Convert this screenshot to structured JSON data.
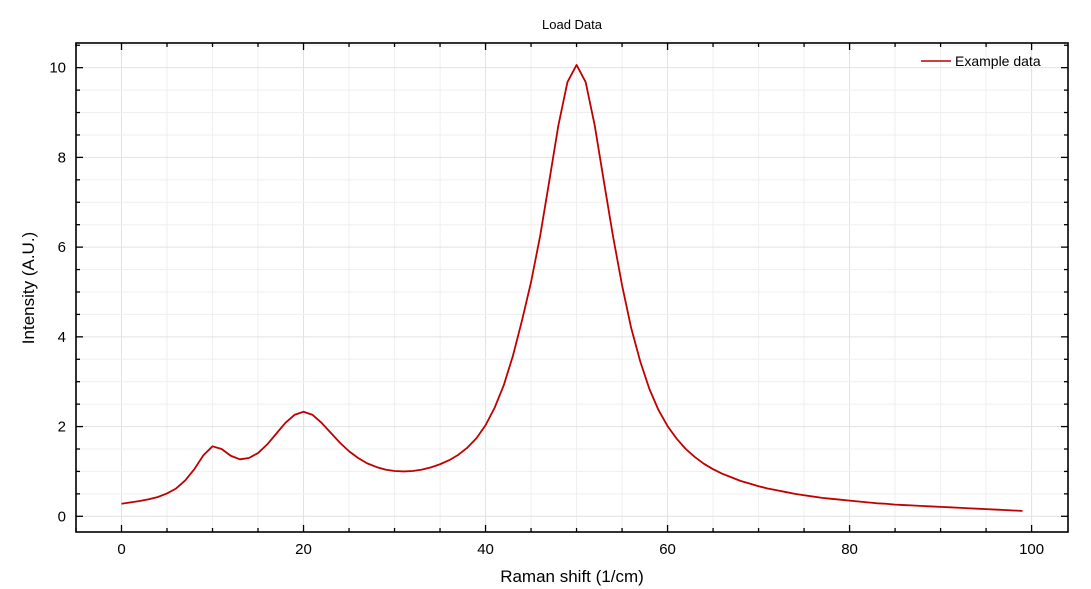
{
  "chart_data": {
    "type": "line",
    "title": "Load Data",
    "xlabel": "Raman shift (1/cm)",
    "ylabel": "Intensity (A.U.)",
    "xlim": [
      -5,
      104
    ],
    "ylim": [
      -0.35,
      10.55
    ],
    "xticks": [
      0,
      20,
      40,
      60,
      80,
      100
    ],
    "yticks": [
      0,
      2,
      4,
      6,
      8,
      10
    ],
    "x_minor_step": 5,
    "y_minor_step": 0.5,
    "grid": true,
    "legend_position": "top-right",
    "series": [
      {
        "name": "Example data",
        "color": "#c00000",
        "points": [
          [
            0,
            0.28
          ],
          [
            1,
            0.31
          ],
          [
            2,
            0.34
          ],
          [
            3,
            0.38
          ],
          [
            4,
            0.43
          ],
          [
            5,
            0.51
          ],
          [
            6,
            0.62
          ],
          [
            7,
            0.8
          ],
          [
            8,
            1.05
          ],
          [
            9,
            1.36
          ],
          [
            10,
            1.56
          ],
          [
            11,
            1.5
          ],
          [
            12,
            1.35
          ],
          [
            13,
            1.27
          ],
          [
            14,
            1.3
          ],
          [
            15,
            1.41
          ],
          [
            16,
            1.6
          ],
          [
            17,
            1.84
          ],
          [
            18,
            2.08
          ],
          [
            19,
            2.26
          ],
          [
            20,
            2.33
          ],
          [
            21,
            2.26
          ],
          [
            22,
            2.08
          ],
          [
            23,
            1.86
          ],
          [
            24,
            1.64
          ],
          [
            25,
            1.45
          ],
          [
            26,
            1.3
          ],
          [
            27,
            1.18
          ],
          [
            28,
            1.1
          ],
          [
            29,
            1.04
          ],
          [
            30,
            1.01
          ],
          [
            31,
            1.0
          ],
          [
            32,
            1.01
          ],
          [
            33,
            1.04
          ],
          [
            34,
            1.09
          ],
          [
            35,
            1.16
          ],
          [
            36,
            1.25
          ],
          [
            37,
            1.37
          ],
          [
            38,
            1.53
          ],
          [
            39,
            1.74
          ],
          [
            40,
            2.03
          ],
          [
            41,
            2.42
          ],
          [
            42,
            2.92
          ],
          [
            43,
            3.57
          ],
          [
            44,
            4.36
          ],
          [
            45,
            5.22
          ],
          [
            46,
            6.25
          ],
          [
            47,
            7.47
          ],
          [
            48,
            8.71
          ],
          [
            49,
            9.68
          ],
          [
            50,
            10.06
          ],
          [
            51,
            9.68
          ],
          [
            52,
            8.71
          ],
          [
            53,
            7.47
          ],
          [
            54,
            6.25
          ],
          [
            55,
            5.15
          ],
          [
            56,
            4.2
          ],
          [
            57,
            3.45
          ],
          [
            58,
            2.84
          ],
          [
            59,
            2.37
          ],
          [
            60,
            2.01
          ],
          [
            61,
            1.73
          ],
          [
            62,
            1.5
          ],
          [
            63,
            1.32
          ],
          [
            64,
            1.17
          ],
          [
            65,
            1.05
          ],
          [
            66,
            0.95
          ],
          [
            67,
            0.87
          ],
          [
            68,
            0.79
          ],
          [
            69,
            0.73
          ],
          [
            70,
            0.67
          ],
          [
            71,
            0.62
          ],
          [
            72,
            0.58
          ],
          [
            73,
            0.54
          ],
          [
            74,
            0.5
          ],
          [
            75,
            0.47
          ],
          [
            76,
            0.44
          ],
          [
            77,
            0.41
          ],
          [
            78,
            0.39
          ],
          [
            79,
            0.37
          ],
          [
            80,
            0.35
          ],
          [
            81,
            0.33
          ],
          [
            82,
            0.31
          ],
          [
            83,
            0.29
          ],
          [
            84,
            0.28
          ],
          [
            85,
            0.26
          ],
          [
            86,
            0.25
          ],
          [
            87,
            0.24
          ],
          [
            88,
            0.23
          ],
          [
            89,
            0.22
          ],
          [
            90,
            0.21
          ],
          [
            91,
            0.2
          ],
          [
            92,
            0.19
          ],
          [
            93,
            0.18
          ],
          [
            94,
            0.17
          ],
          [
            95,
            0.16
          ],
          [
            96,
            0.15
          ],
          [
            97,
            0.14
          ],
          [
            98,
            0.13
          ],
          [
            99,
            0.12
          ]
        ]
      }
    ]
  }
}
